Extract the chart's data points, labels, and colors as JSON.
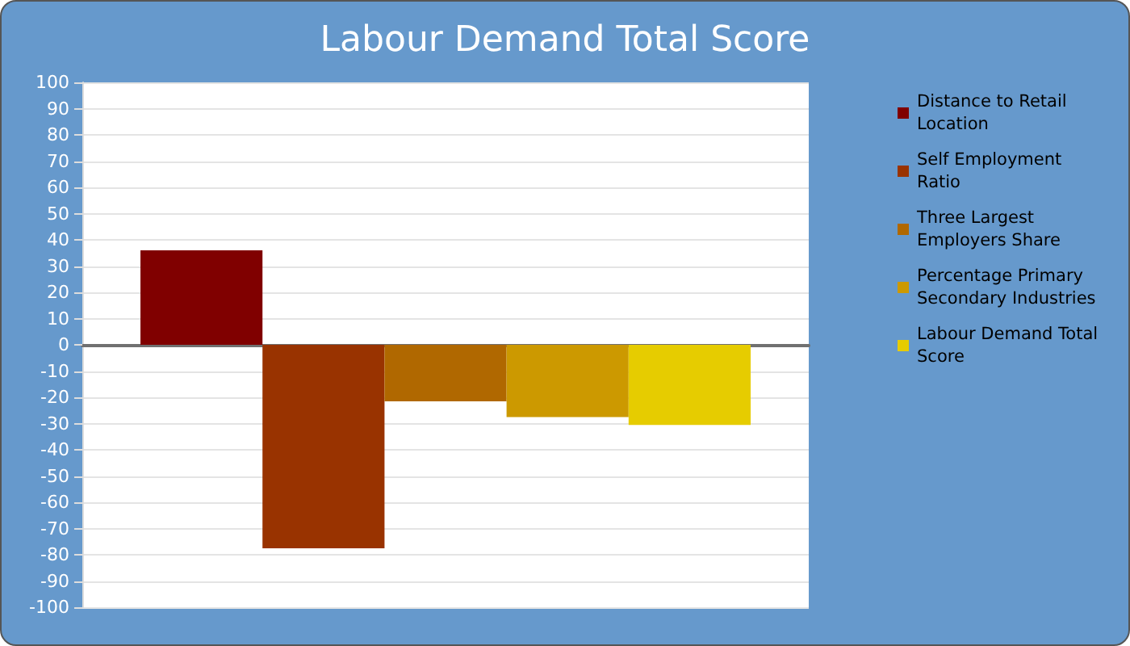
{
  "chart_data": {
    "type": "bar",
    "title": "Labour Demand Total Score",
    "categories": [
      null
    ],
    "series": [
      {
        "name": "Distance to Retail Location",
        "color": "#800000",
        "values": [
          36
        ]
      },
      {
        "name": "Self Employment Ratio",
        "color": "#993300",
        "values": [
          -77.5
        ]
      },
      {
        "name": "Three Largest Employers Share",
        "color": "#b06800",
        "values": [
          -21.5
        ]
      },
      {
        "name": "Percentage Primary Secondary Industries",
        "color": "#cc9900",
        "values": [
          -27.5
        ]
      },
      {
        "name": "Labour Demand Total Score",
        "color": "#e6cc00",
        "values": [
          -30.5
        ]
      }
    ],
    "ylim": [
      -100,
      100
    ],
    "yticks": [
      -100,
      -90,
      -80,
      -70,
      -60,
      -50,
      -40,
      -30,
      -20,
      -10,
      0,
      10,
      20,
      30,
      40,
      50,
      60,
      70,
      80,
      90,
      100
    ],
    "grid": "y",
    "legend": "right"
  }
}
